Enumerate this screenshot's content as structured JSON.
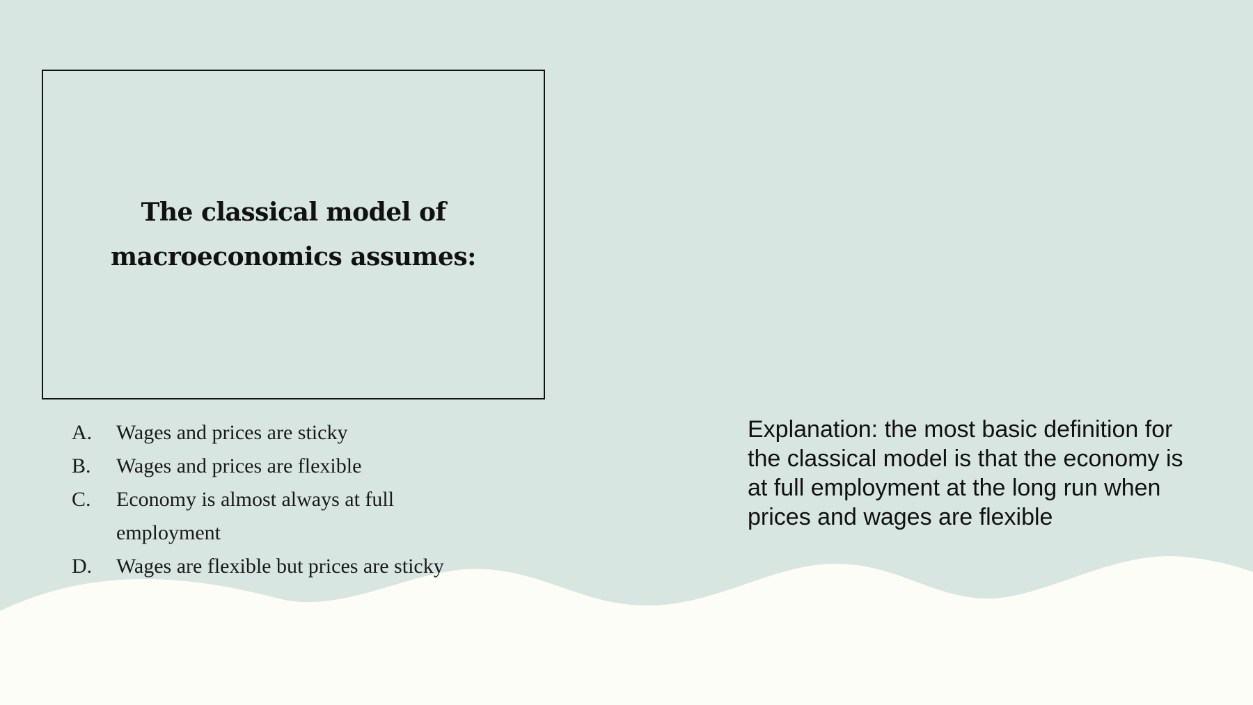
{
  "question": {
    "text": "The classical model of macroeconomics assumes:"
  },
  "answers": [
    {
      "letter": "A.",
      "text": "Wages and prices are sticky"
    },
    {
      "letter": "B.",
      "text": "Wages and prices are flexible"
    },
    {
      "letter": "C.",
      "text": "Economy is almost always at full employment"
    },
    {
      "letter": "D.",
      "text": "Wages are flexible but prices are sticky"
    }
  ],
  "explanation": {
    "text": "Explanation: the most basic definition for the classical model is that the economy is at full employment at the long run when prices and wages are flexible"
  },
  "colors": {
    "background": "#d7e6e0",
    "wave": "#fcfdf6",
    "text": "#111111"
  }
}
